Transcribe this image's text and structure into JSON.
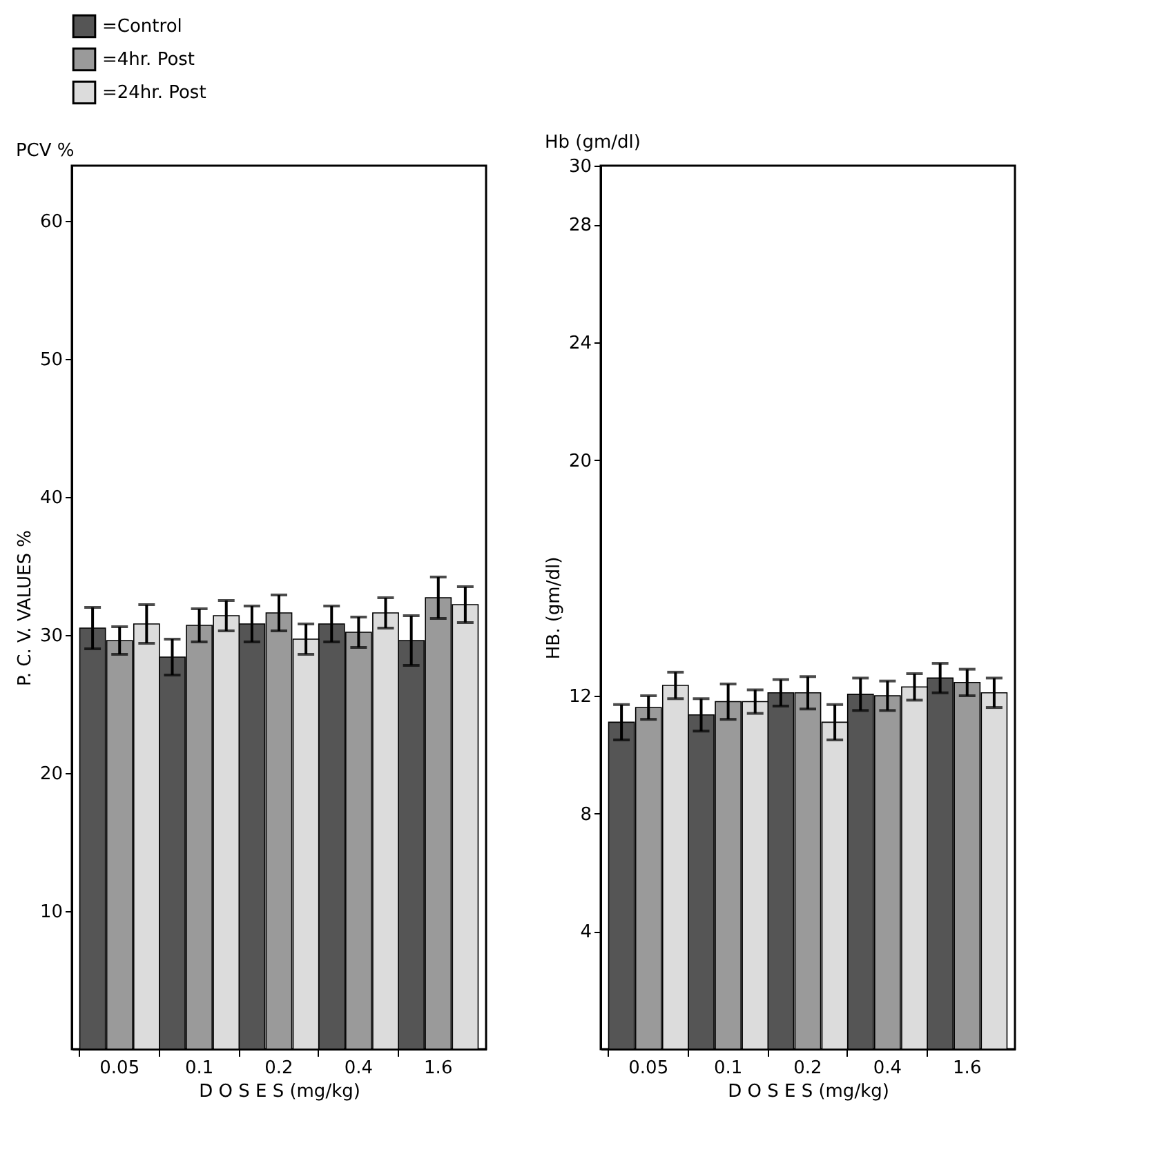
{
  "chart_data": [
    {
      "type": "bar",
      "title": "PCV %",
      "ylabel": "P. C. V.   VALUES   %",
      "xlabel": "D O S E S  (mg/kg)",
      "categories": [
        "0.05",
        "0.1",
        "0.2",
        "0.4",
        "1.6"
      ],
      "series": [
        {
          "name": "=Control",
          "color": "#555555",
          "values": [
            30.5,
            28.4,
            30.8,
            30.8,
            29.6
          ],
          "errors": [
            1.5,
            1.3,
            1.3,
            1.3,
            1.8
          ]
        },
        {
          "name": "=4hr. Post",
          "color": "#9a9a9a",
          "values": [
            29.6,
            30.7,
            31.6,
            30.2,
            32.7
          ],
          "errors": [
            1.0,
            1.2,
            1.3,
            1.1,
            1.5
          ]
        },
        {
          "name": "=24hr. Post",
          "color": "#dcdcdc",
          "values": [
            30.8,
            31.4,
            29.7,
            31.6,
            32.2
          ],
          "errors": [
            1.4,
            1.1,
            1.1,
            1.1,
            1.3
          ]
        }
      ],
      "ylim": [
        0,
        64
      ],
      "yticks": [
        10,
        20,
        30,
        40,
        50,
        60
      ],
      "grid": false,
      "legend": "top"
    },
    {
      "type": "bar",
      "title": "Hb (gm/dl)",
      "ylabel": "HB. (gm/dl)",
      "xlabel": "D O S E S  (mg/kg)",
      "categories": [
        "0.05",
        "0.1",
        "0.2",
        "0.4",
        "1.6"
      ],
      "series": [
        {
          "name": "=Control",
          "color": "#555555",
          "values": [
            11.1,
            11.35,
            12.1,
            12.05,
            12.6
          ],
          "errors": [
            0.6,
            0.55,
            0.45,
            0.55,
            0.5
          ]
        },
        {
          "name": "=4hr. Post",
          "color": "#9a9a9a",
          "values": [
            11.6,
            11.8,
            12.1,
            12.0,
            12.45
          ],
          "errors": [
            0.4,
            0.6,
            0.55,
            0.5,
            0.45
          ]
        },
        {
          "name": "=24hr. Post",
          "color": "#dcdcdc",
          "values": [
            12.35,
            11.8,
            11.1,
            12.3,
            12.1
          ],
          "errors": [
            0.45,
            0.4,
            0.6,
            0.45,
            0.5
          ]
        }
      ],
      "ylim": [
        0,
        30
      ],
      "yticks": [
        4,
        8,
        12,
        20,
        24,
        28,
        30
      ],
      "grid": false,
      "legend": "top"
    }
  ]
}
